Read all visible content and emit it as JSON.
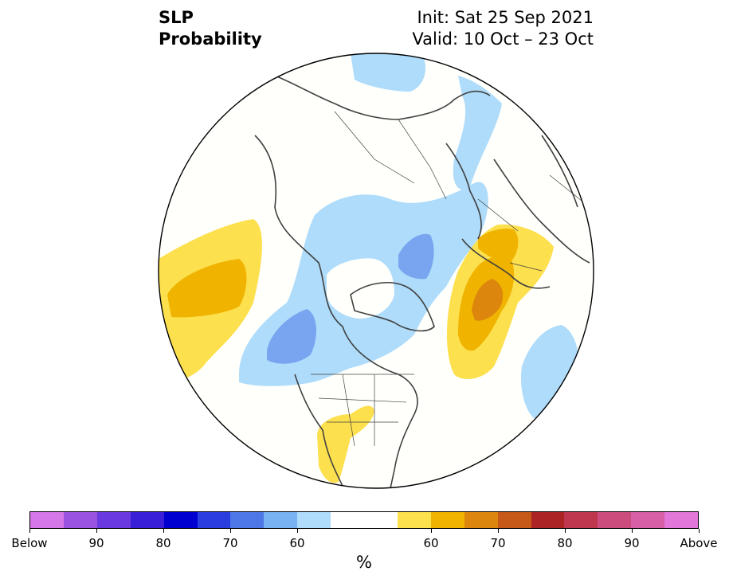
{
  "title": {
    "variable": "SLP",
    "subtitle": "Probability",
    "init": "Init: Sat 25 Sep 2021",
    "valid": "Valid: 10 Oct – 23 Oct"
  },
  "map": {
    "projection": "north-polar-stereographic",
    "outline_color": "#000000",
    "coastline_color": "#404040"
  },
  "colorbar": {
    "unit_label": "%",
    "below_colors": [
      "#d677e8",
      "#9a52e0",
      "#6a3ae0",
      "#3a1fd8",
      "#0000d0",
      "#2a3ee0",
      "#4e78e8",
      "#78b2f2",
      "#aedcfa"
    ],
    "neutral_color": "#ffffff",
    "above_colors": [
      "#fde04e",
      "#f0b400",
      "#dc860e",
      "#c65818",
      "#ad2424",
      "#bf364f",
      "#cc4d7d",
      "#d65fa5",
      "#e277d9"
    ],
    "tick_labels": [
      "Below",
      "90",
      "80",
      "70",
      "60",
      "60",
      "70",
      "80",
      "90",
      "Above"
    ]
  },
  "anomalies": [
    {
      "name": "north-pacific-above",
      "category": "above",
      "levels": [
        60,
        65
      ]
    },
    {
      "name": "gulf-of-alaska-below",
      "category": "below",
      "levels": [
        60,
        65
      ]
    },
    {
      "name": "arctic-below",
      "category": "below",
      "levels": [
        60,
        65
      ]
    },
    {
      "name": "north-atlantic-above",
      "category": "above",
      "levels": [
        60,
        65,
        70
      ]
    },
    {
      "name": "europe-above",
      "category": "above",
      "levels": [
        60,
        65
      ]
    },
    {
      "name": "western-europe-below",
      "category": "below",
      "levels": [
        60
      ]
    },
    {
      "name": "southern-us-above",
      "category": "above",
      "levels": [
        60
      ]
    }
  ]
}
